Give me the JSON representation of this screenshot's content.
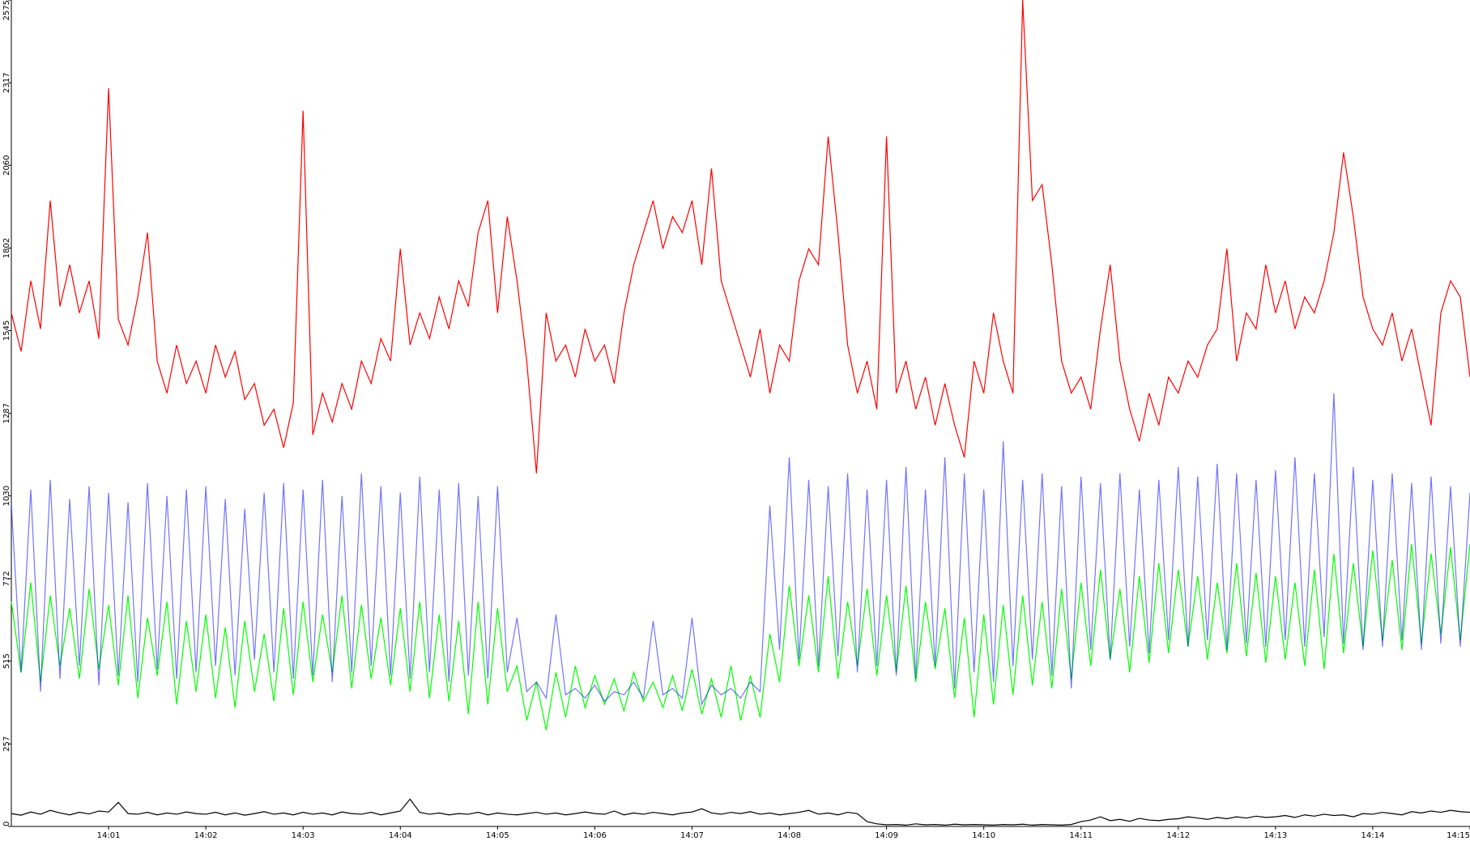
{
  "chart_data": {
    "type": "line",
    "x": [
      0,
      0.1,
      0.2,
      0.3,
      0.4,
      0.5,
      0.6,
      0.7,
      0.8,
      0.9,
      1,
      1.1,
      1.2,
      1.3,
      1.4,
      1.5,
      1.6,
      1.7,
      1.8,
      1.9,
      2,
      2.1,
      2.2,
      2.3,
      2.4,
      2.5,
      2.6,
      2.7,
      2.8,
      2.9,
      3,
      3.1,
      3.2,
      3.3,
      3.4,
      3.5,
      3.6,
      3.7,
      3.8,
      3.9,
      4,
      4.1,
      4.2,
      4.3,
      4.4,
      4.5,
      4.6,
      4.7,
      4.8,
      4.9,
      5,
      5.1,
      5.2,
      5.3,
      5.4,
      5.5,
      5.6,
      5.7,
      5.8,
      5.9,
      6,
      6.1,
      6.2,
      6.3,
      6.4,
      6.5,
      6.6,
      6.7,
      6.8,
      6.9,
      7,
      7.1,
      7.2,
      7.3,
      7.4,
      7.5,
      7.6,
      7.7,
      7.8,
      7.9,
      8,
      8.1,
      8.2,
      8.3,
      8.4,
      8.5,
      8.6,
      8.7,
      8.8,
      8.9,
      9,
      9.1,
      9.2,
      9.3,
      9.4,
      9.5,
      9.6,
      9.7,
      9.8,
      9.9,
      10,
      10.1,
      10.2,
      10.3,
      10.4,
      10.5,
      10.6,
      10.7,
      10.8,
      10.9,
      11,
      11.1,
      11.2,
      11.3,
      11.4,
      11.5,
      11.6,
      11.7,
      11.8,
      11.9,
      12,
      12.1,
      12.2,
      12.3,
      12.4,
      12.5,
      12.6,
      12.7,
      12.8,
      12.9,
      13,
      13.1,
      13.2,
      13.3,
      13.4,
      13.5,
      13.6,
      13.7,
      13.8,
      13.9,
      14,
      14.1,
      14.2,
      14.3,
      14.4,
      14.5,
      14.6,
      14.7,
      14.8,
      14.9,
      15
    ],
    "series": [
      {
        "color": "#00ff00",
        "opacity": 1,
        "values": [
          700,
          480,
          760,
          450,
          720,
          500,
          680,
          460,
          740,
          490,
          690,
          440,
          720,
          400,
          650,
          470,
          700,
          380,
          640,
          420,
          660,
          400,
          620,
          370,
          640,
          420,
          600,
          390,
          680,
          410,
          700,
          450,
          660,
          480,
          720,
          430,
          690,
          460,
          650,
          440,
          680,
          420,
          700,
          400,
          660,
          390,
          640,
          350,
          700,
          380,
          680,
          420,
          500,
          330,
          450,
          300,
          480,
          340,
          500,
          370,
          470,
          380,
          460,
          360,
          480,
          390,
          450,
          370,
          470,
          360,
          490,
          350,
          460,
          340,
          500,
          330,
          470,
          340,
          600,
          450,
          750,
          500,
          720,
          480,
          780,
          460,
          700,
          500,
          740,
          470,
          720,
          480,
          750,
          450,
          700,
          490,
          680,
          400,
          650,
          340,
          660,
          380,
          690,
          410,
          720,
          440,
          700,
          430,
          740,
          460,
          760,
          500,
          800,
          520,
          740,
          480,
          780,
          510,
          820,
          540,
          800,
          560,
          780,
          520,
          760,
          540,
          820,
          530,
          790,
          510,
          780,
          520,
          760,
          500,
          800,
          490,
          850,
          540,
          820,
          560,
          860,
          580,
          830,
          550,
          880,
          570,
          850,
          600,
          870,
          580,
          880
        ]
      },
      {
        "color": "#0000ff",
        "opacity": 0.55,
        "values": [
          1000,
          480,
          1050,
          420,
          1080,
          460,
          1020,
          500,
          1060,
          440,
          1040,
          470,
          1010,
          450,
          1070,
          490,
          1030,
          460,
          1050,
          480,
          1060,
          500,
          1020,
          470,
          990,
          520,
          1040,
          480,
          1070,
          460,
          1050,
          470,
          1080,
          450,
          1030,
          480,
          1100,
          500,
          1060,
          470,
          1040,
          460,
          1090,
          480,
          1050,
          450,
          1070,
          470,
          1030,
          460,
          1060,
          480,
          650,
          420,
          450,
          400,
          660,
          410,
          430,
          400,
          440,
          390,
          420,
          410,
          450,
          400,
          640,
          410,
          430,
          400,
          650,
          380,
          440,
          410,
          430,
          400,
          450,
          420,
          1000,
          550,
          1150,
          520,
          1080,
          500,
          1060,
          530,
          1100,
          480,
          1050,
          500,
          1080,
          470,
          1120,
          460,
          1050,
          500,
          1150,
          430,
          1100,
          480,
          1050,
          450,
          1200,
          500,
          1080,
          520,
          1100,
          470,
          1060,
          430,
          1090,
          550,
          1070,
          520,
          1100,
          560,
          1050,
          540,
          1080,
          580,
          1120,
          560,
          1090,
          580,
          1130,
          550,
          1100,
          570,
          1080,
          560,
          1110,
          580,
          1150,
          560,
          1100,
          590,
          1350,
          570,
          1120,
          550,
          1080,
          560,
          1100,
          580,
          1070,
          550,
          1090,
          570,
          1060,
          560,
          1040
        ]
      },
      {
        "color": "#ff0000",
        "opacity": 1,
        "values": [
          1600,
          1480,
          1700,
          1550,
          1950,
          1620,
          1750,
          1600,
          1700,
          1520,
          2300,
          1580,
          1500,
          1650,
          1850,
          1450,
          1350,
          1500,
          1380,
          1450,
          1350,
          1500,
          1400,
          1480,
          1330,
          1380,
          1250,
          1300,
          1180,
          1320,
          2230,
          1220,
          1350,
          1260,
          1380,
          1300,
          1450,
          1380,
          1520,
          1450,
          1800,
          1500,
          1600,
          1520,
          1650,
          1550,
          1700,
          1620,
          1850,
          1950,
          1600,
          1900,
          1700,
          1450,
          1100,
          1600,
          1450,
          1500,
          1400,
          1550,
          1450,
          1500,
          1380,
          1600,
          1750,
          1850,
          1950,
          1800,
          1900,
          1850,
          1950,
          1750,
          2050,
          1700,
          1600,
          1500,
          1400,
          1550,
          1350,
          1500,
          1450,
          1700,
          1800,
          1750,
          2150,
          1850,
          1500,
          1350,
          1450,
          1300,
          2150,
          1350,
          1450,
          1300,
          1400,
          1250,
          1380,
          1250,
          1150,
          1450,
          1350,
          1600,
          1450,
          1350,
          2575,
          1950,
          2000,
          1750,
          1450,
          1350,
          1400,
          1300,
          1550,
          1750,
          1450,
          1300,
          1200,
          1350,
          1250,
          1400,
          1350,
          1450,
          1400,
          1500,
          1550,
          1800,
          1450,
          1600,
          1550,
          1750,
          1600,
          1700,
          1550,
          1650,
          1600,
          1700,
          1850,
          2100,
          1900,
          1650,
          1550,
          1500,
          1600,
          1450,
          1550,
          1400,
          1250,
          1600,
          1700,
          1650,
          1400
        ]
      },
      {
        "color": "#000000",
        "opacity": 1,
        "values": [
          40,
          35,
          45,
          38,
          50,
          42,
          36,
          44,
          39,
          48,
          45,
          75,
          40,
          38,
          44,
          36,
          42,
          38,
          45,
          40,
          38,
          44,
          36,
          42,
          35,
          40,
          46,
          38,
          42,
          36,
          44,
          38,
          42,
          36,
          45,
          40,
          38,
          44,
          36,
          42,
          48,
          85,
          44,
          38,
          42,
          36,
          40,
          38,
          44,
          36,
          42,
          38,
          36,
          40,
          44,
          38,
          42,
          36,
          40,
          45,
          40,
          38,
          48,
          36,
          42,
          38,
          44,
          40,
          36,
          42,
          45,
          55,
          42,
          38,
          44,
          40,
          46,
          38,
          42,
          36,
          40,
          44,
          50,
          38,
          42,
          36,
          44,
          40,
          15,
          8,
          5,
          6,
          4,
          8,
          5,
          6,
          4,
          7,
          5,
          6,
          5,
          4,
          6,
          5,
          7,
          4,
          6,
          5,
          4,
          6,
          15,
          20,
          30,
          18,
          22,
          16,
          25,
          20,
          18,
          22,
          24,
          30,
          26,
          22,
          28,
          24,
          30,
          26,
          32,
          28,
          30,
          34,
          28,
          36,
          32,
          38,
          34,
          36,
          30,
          40,
          38,
          44,
          40,
          36,
          46,
          42,
          48,
          44,
          50,
          46,
          44
        ]
      }
    ],
    "xlim": [
      0,
      15
    ],
    "xticks": [
      {
        "value": 1,
        "label": "14:01"
      },
      {
        "value": 2,
        "label": "14:02"
      },
      {
        "value": 3,
        "label": "14:03"
      },
      {
        "value": 4,
        "label": "14:04"
      },
      {
        "value": 5,
        "label": "14:05"
      },
      {
        "value": 6,
        "label": "14:06"
      },
      {
        "value": 7,
        "label": "14:07"
      },
      {
        "value": 8,
        "label": "14:08"
      },
      {
        "value": 9,
        "label": "14:09"
      },
      {
        "value": 10,
        "label": "14:10"
      },
      {
        "value": 11,
        "label": "14:11"
      },
      {
        "value": 12,
        "label": "14:12"
      },
      {
        "value": 13,
        "label": "14:13"
      },
      {
        "value": 14,
        "label": "14:14"
      },
      {
        "value": 15,
        "label": "14:15"
      }
    ],
    "ylim": [
      0,
      2575
    ],
    "yticks": [
      0,
      257,
      515,
      772,
      1030,
      1287,
      1545,
      1802,
      2060,
      2317,
      2575
    ],
    "grid": false
  }
}
